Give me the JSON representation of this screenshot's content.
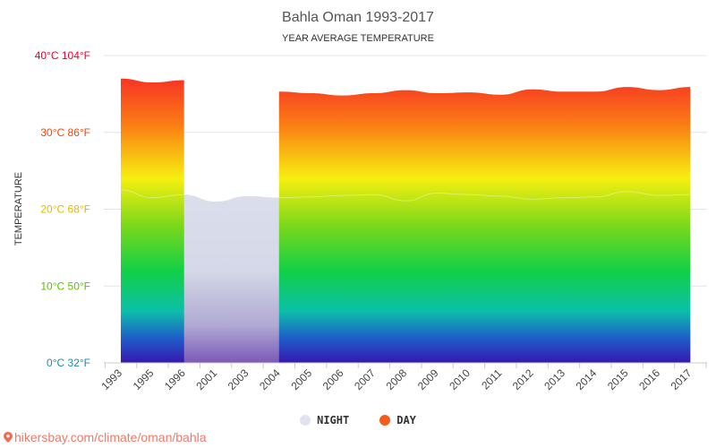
{
  "chart_data": {
    "type": "area",
    "title": "Bahla Oman 1993-2017",
    "subtitle": "YEAR AVERAGE TEMPERATURE",
    "ylabel": "TEMPERATURE",
    "ylim": [
      0,
      40
    ],
    "y_ticks": [
      {
        "value": 0,
        "label": "0°C 32°F",
        "color": "#1a8fb0"
      },
      {
        "value": 10,
        "label": "10°C 50°F",
        "color": "#5cc400"
      },
      {
        "value": 20,
        "label": "20°C 68°F",
        "color": "#e6b800"
      },
      {
        "value": 30,
        "label": "30°C 86°F",
        "color": "#f04a10"
      },
      {
        "value": 40,
        "label": "40°C 104°F",
        "color": "#e8002a"
      }
    ],
    "categories": [
      "1993",
      "1995",
      "1996",
      "2001",
      "2003",
      "2004",
      "2005",
      "2006",
      "2007",
      "2008",
      "2009",
      "2010",
      "2011",
      "2012",
      "2013",
      "2014",
      "2015",
      "2016",
      "2017"
    ],
    "series": [
      {
        "name": "NIGHT",
        "color": "#e0e3ef",
        "values": [
          22.5,
          21.5,
          21.9,
          21.0,
          21.7,
          21.5,
          21.6,
          21.8,
          21.9,
          21.1,
          22.1,
          21.9,
          21.7,
          21.3,
          21.5,
          21.6,
          22.3,
          21.8,
          21.9
        ]
      },
      {
        "name": "DAY",
        "color": "#f55a1e",
        "values": [
          37.0,
          36.5,
          36.8,
          null,
          null,
          35.3,
          35.1,
          34.8,
          35.1,
          35.5,
          35.1,
          35.2,
          34.9,
          35.6,
          35.3,
          35.3,
          35.9,
          35.5,
          35.9
        ]
      }
    ]
  },
  "watermark": "hikersbay.com/climate/oman/bahla"
}
